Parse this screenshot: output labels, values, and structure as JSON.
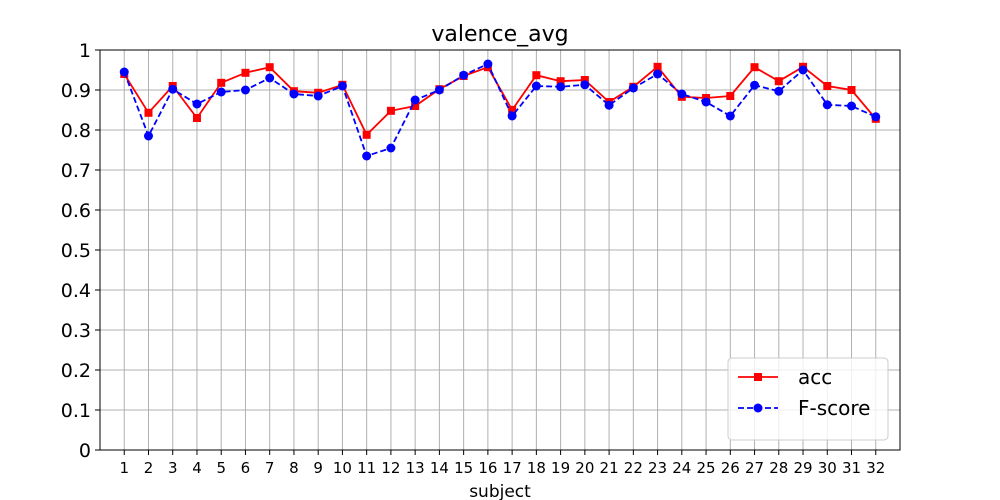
{
  "chart_data": {
    "type": "line",
    "title": "valence_avg",
    "xlabel": "subject",
    "ylabel": "",
    "x": [
      1,
      2,
      3,
      4,
      5,
      6,
      7,
      8,
      9,
      10,
      11,
      12,
      13,
      14,
      15,
      16,
      17,
      18,
      19,
      20,
      21,
      22,
      23,
      24,
      25,
      26,
      27,
      28,
      29,
      30,
      31,
      32
    ],
    "xlim": [
      0,
      33
    ],
    "ylim": [
      0,
      1
    ],
    "yticks": [
      0,
      0.1,
      0.2,
      0.3,
      0.4,
      0.5,
      0.6,
      0.7,
      0.8,
      0.9,
      1
    ],
    "ytick_labels": [
      "0",
      "0.1",
      "0.2",
      "0.3",
      "0.4",
      "0.5",
      "0.6",
      "0.7",
      "0.8",
      "0.9",
      "1"
    ],
    "grid": true,
    "legend": "lower-right",
    "series": [
      {
        "name": "acc",
        "color": "#ff0000",
        "line_style": "solid",
        "marker": "square",
        "values": [
          0.94,
          0.843,
          0.91,
          0.83,
          0.918,
          0.943,
          0.957,
          0.897,
          0.893,
          0.913,
          0.788,
          0.848,
          0.86,
          0.902,
          0.935,
          0.957,
          0.85,
          0.937,
          0.922,
          0.925,
          0.87,
          0.908,
          0.958,
          0.883,
          0.88,
          0.885,
          0.957,
          0.922,
          0.958,
          0.91,
          0.9,
          0.828
        ]
      },
      {
        "name": "F-score",
        "color": "#0000ff",
        "line_style": "dashed",
        "marker": "circle",
        "values": [
          0.945,
          0.785,
          0.902,
          0.865,
          0.895,
          0.9,
          0.93,
          0.89,
          0.885,
          0.91,
          0.735,
          0.755,
          0.875,
          0.9,
          0.937,
          0.965,
          0.835,
          0.91,
          0.908,
          0.913,
          0.862,
          0.905,
          0.94,
          0.89,
          0.87,
          0.835,
          0.912,
          0.897,
          0.95,
          0.863,
          0.86,
          0.833
        ]
      }
    ]
  }
}
